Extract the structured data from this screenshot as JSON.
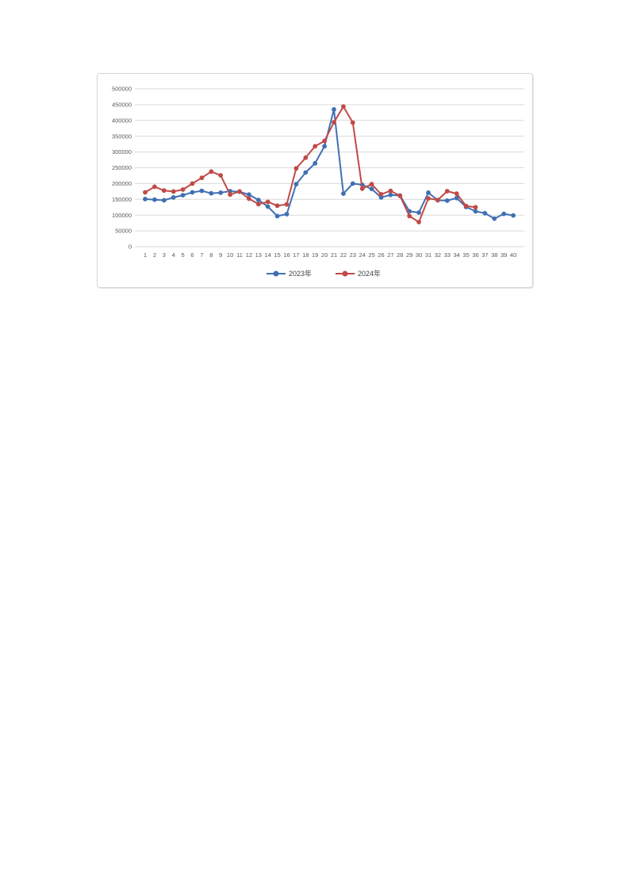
{
  "page": {
    "background_color": "#ffffff"
  },
  "chart_data": {
    "type": "line",
    "title": "",
    "xlabel": "",
    "ylabel": "",
    "categories": [
      "1",
      "2",
      "3",
      "4",
      "5",
      "6",
      "7",
      "8",
      "9",
      "10",
      "11",
      "12",
      "13",
      "14",
      "15",
      "16",
      "17",
      "18",
      "19",
      "20",
      "21",
      "22",
      "23",
      "24",
      "25",
      "26",
      "27",
      "28",
      "29",
      "30",
      "31",
      "32",
      "33",
      "34",
      "35",
      "36",
      "37",
      "38",
      "39",
      "40"
    ],
    "series": [
      {
        "name": "2023年",
        "color": "#4170b2",
        "marker": "circle",
        "values": [
          151000,
          149000,
          147000,
          156000,
          163000,
          172000,
          177000,
          169000,
          171000,
          176000,
          174000,
          165000,
          148000,
          127000,
          97000,
          103000,
          198000,
          235000,
          264000,
          318000,
          435000,
          168000,
          200000,
          196000,
          183000,
          156000,
          164000,
          162000,
          112000,
          108000,
          171000,
          147000,
          146000,
          154000,
          126000,
          112000,
          106000,
          89000,
          104000,
          99000
        ]
      },
      {
        "name": "2024年",
        "color": "#c04a47",
        "marker": "circle",
        "values": [
          172000,
          190000,
          178000,
          175000,
          181000,
          200000,
          218000,
          238000,
          226000,
          165000,
          175000,
          152000,
          135000,
          142000,
          130000,
          134000,
          248000,
          282000,
          318000,
          335000,
          394000,
          444000,
          393000,
          184000,
          198000,
          166000,
          177000,
          161000,
          97000,
          78000,
          153000,
          148000,
          176000,
          168000,
          129000,
          125000
        ]
      }
    ],
    "ylim": [
      0,
      500000
    ],
    "ytick_interval": 50000,
    "ytick_labels": [
      "0",
      "50000",
      "100000",
      "150000",
      "200000",
      "250000",
      "300000",
      "350000",
      "400000",
      "450000",
      "500000"
    ],
    "grid": "horizontal",
    "gridline_color": "#dadada",
    "axis_label_color": "#595959",
    "legend_text_color": "#404040",
    "legend_position": "bottom",
    "legend": [
      "2023年",
      "2024年"
    ]
  }
}
